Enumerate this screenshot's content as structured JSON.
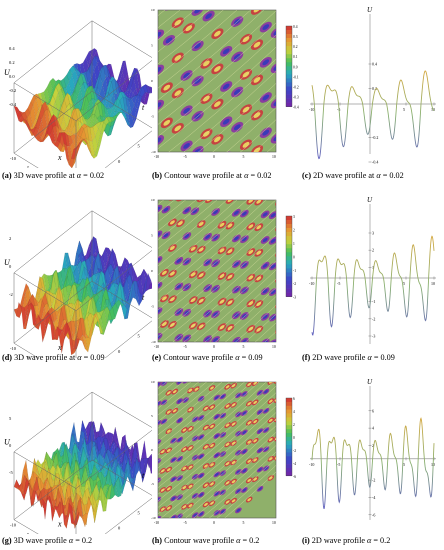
{
  "rows": [
    {
      "alpha": "0.02",
      "captions": {
        "a": {
          "tag": "(a)",
          "text": " 3D wave profile at ",
          "sym": "α",
          "eq": " = 0.02"
        },
        "b": {
          "tag": "(b)",
          "text": " Contour wave profile at ",
          "sym": "α",
          "eq": " = 0.02"
        },
        "c": {
          "tag": "(c)",
          "text": " 2D wave profile at ",
          "sym": "α",
          "eq": " = 0.02"
        }
      },
      "surface_axes": {
        "u": "U",
        "x": "x",
        "t": "t",
        "u_ticks": [
          "0.4",
          "0.2",
          "0.0",
          "-0.2",
          "-0.4"
        ],
        "x_ticks": [
          "-10",
          "-5",
          "0",
          "5",
          "10"
        ],
        "t_ticks": [
          "-5",
          "0",
          "5",
          "10"
        ]
      },
      "contour_ticks": {
        "x": [
          "-10",
          "-5",
          "0",
          "5",
          "10"
        ],
        "y": [
          "-10",
          "-5",
          "0",
          "5",
          "10"
        ]
      },
      "legend_ticks": [
        "0.4",
        "0.3",
        "0.2",
        "0.1",
        "0.0",
        "-0.1",
        "-0.2",
        "-0.3",
        "-0.4"
      ],
      "line_axes": {
        "u": "U",
        "x_ticks": [
          "-10",
          "-5",
          "5",
          "10"
        ],
        "y_ticks": [
          "0.4",
          "0.2",
          "-0.2",
          "-0.4"
        ]
      }
    },
    {
      "alpha": "0.09",
      "captions": {
        "a": {
          "tag": "(d)",
          "text": " 3D wave profile at ",
          "sym": "α",
          "eq": " = 0.09"
        },
        "b": {
          "tag": "(e)",
          "text": " Contour wave profile ",
          "sym": "α",
          "eq": " = 0.09"
        },
        "c": {
          "tag": "(f)",
          "text": " 2D wave profile ",
          "sym": "α",
          "eq": " = 0.09"
        }
      },
      "surface_axes": {
        "u": "U",
        "x": "x",
        "t": "t",
        "u_ticks": [
          "2",
          "0",
          "-2"
        ],
        "x_ticks": [
          "-10",
          "-5",
          "0",
          "5",
          "10"
        ],
        "t_ticks": [
          "-5",
          "0",
          "5",
          "10"
        ]
      },
      "contour_ticks": {
        "x": [
          "-10",
          "-5",
          "0",
          "5",
          "10"
        ],
        "y": [
          "-10",
          "-5",
          "0",
          "5",
          "10"
        ]
      },
      "legend_ticks": [
        "3",
        "2",
        "1",
        "0",
        "-1",
        "-2",
        "-3"
      ],
      "line_axes": {
        "u": "U",
        "x_ticks": [
          "-10",
          "-5",
          "5",
          "10"
        ],
        "y_ticks": [
          "3",
          "2",
          "1",
          "-1",
          "-2",
          "-3"
        ]
      }
    },
    {
      "alpha": "0.2",
      "captions": {
        "a": {
          "tag": "(g)",
          "text": " 3D wave profile ",
          "sym": "α",
          "eq": " = 0.2"
        },
        "b": {
          "tag": "(h)",
          "text": " Contour wave profile ",
          "sym": "α",
          "eq": " = 0.2"
        },
        "c": {
          "tag": "(i)",
          "text": " 2D wave profile ",
          "sym": "α",
          "eq": " = 0.2"
        }
      },
      "surface_axes": {
        "u": "U",
        "x": "x",
        "t": "t",
        "u_ticks": [
          "5",
          "0",
          "-5"
        ],
        "x_ticks": [
          "-10",
          "-5",
          "0",
          "5",
          "10"
        ],
        "t_ticks": [
          "-5",
          "0",
          "5",
          "10"
        ]
      },
      "contour_ticks": {
        "x": [
          "-10",
          "-5",
          "0",
          "5",
          "10"
        ],
        "y": [
          "-10",
          "-5",
          "0",
          "5",
          "10"
        ]
      },
      "legend_ticks": [
        "6",
        "4",
        "2",
        "0",
        "-2",
        "-4",
        "-6"
      ],
      "line_axes": {
        "u": "U",
        "x_ticks": [
          "-10",
          "-5",
          "5",
          "10"
        ],
        "y_ticks": [
          "6",
          "4",
          "2",
          "-2",
          "-4",
          "-6"
        ]
      }
    }
  ],
  "colors": {
    "contour_bg": "#8fb06a",
    "blue": "#3a3ab8",
    "violet": "#8a2aa8",
    "red": "#d0303a",
    "yellow": "#e8d060",
    "line_top": "#d4a840",
    "line_bottom": "#6060c0"
  }
}
